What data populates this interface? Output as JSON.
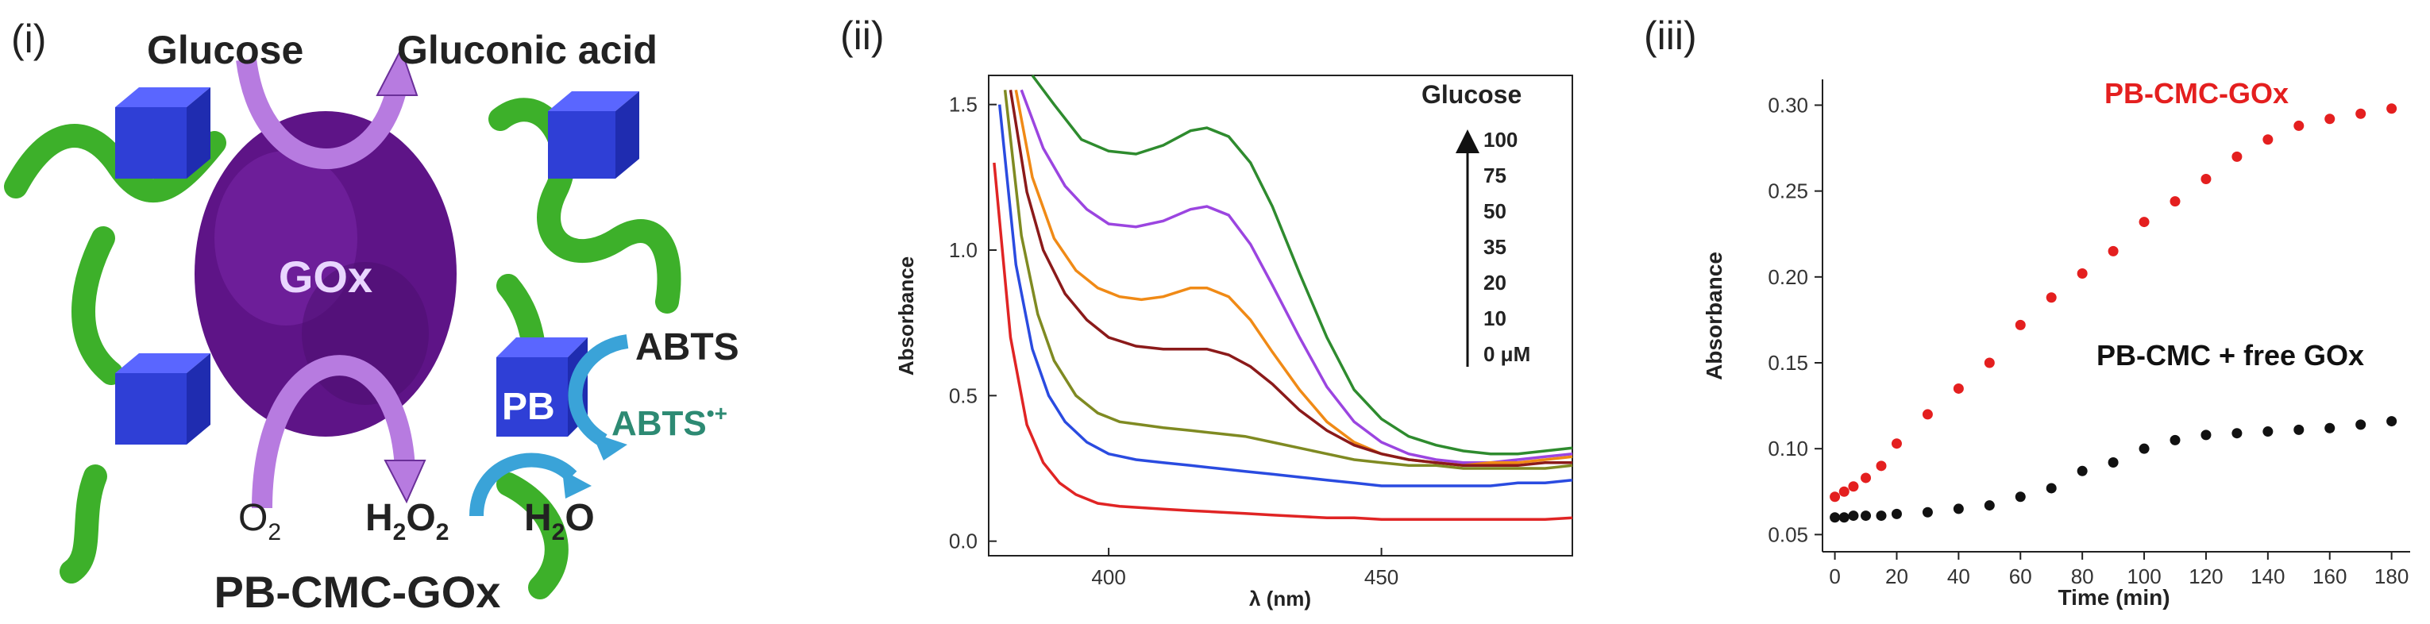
{
  "panel_i": {
    "label": "(i)",
    "glucose": "Glucose",
    "gluconic_acid": "Gluconic acid",
    "enzyme": "GOx",
    "o2": "O",
    "o2_sub": "2",
    "h2o2": "H",
    "h2o2_sub1": "2",
    "h2o2_mid": "O",
    "h2o2_sub2": "2",
    "pb": "PB",
    "abts": "ABTS",
    "abts_radical": "ABTS",
    "abts_radical_sup": "•+",
    "h2o": "H",
    "h2o_sub": "2",
    "h2o_end": "O",
    "complex_name": "PB-CMC-GOx",
    "colors": {
      "chain": "#3db02a",
      "cube": "#2f3fd6",
      "enzyme": "#6a1a93",
      "arrow_purple": "#b77be0",
      "arrow_blue": "#3aa3d8",
      "abts_radical": "#2d8a73"
    }
  },
  "chart_data": [
    {
      "type": "line",
      "panel_label": "(ii)",
      "xlabel": "λ (nm)",
      "ylabel": "Absorbance",
      "xlim": [
        378,
        485
      ],
      "ylim": [
        -0.05,
        1.6
      ],
      "xticks": [
        400,
        450
      ],
      "yticks": [
        "0.0",
        "0.5",
        "1.0",
        "1.5"
      ],
      "legend_title": "Glucose",
      "legend_labels": [
        "100",
        "75",
        "50",
        "35",
        "20",
        "10",
        "0 μM"
      ],
      "series": [
        {
          "name": "100",
          "color": "#2e8b2e",
          "x": [
            386,
            390,
            395,
            400,
            405,
            410,
            415,
            418,
            422,
            426,
            430,
            435,
            440,
            445,
            450,
            455,
            460,
            465,
            470,
            475,
            480,
            485
          ],
          "y": [
            1.6,
            1.5,
            1.38,
            1.34,
            1.33,
            1.36,
            1.41,
            1.42,
            1.39,
            1.3,
            1.15,
            0.92,
            0.7,
            0.52,
            0.42,
            0.36,
            0.33,
            0.31,
            0.3,
            0.3,
            0.31,
            0.32
          ]
        },
        {
          "name": "75",
          "color": "#9b45e0",
          "x": [
            384,
            388,
            392,
            396,
            400,
            405,
            410,
            415,
            418,
            422,
            426,
            430,
            435,
            440,
            445,
            450,
            455,
            460,
            465,
            470,
            475,
            480,
            485
          ],
          "y": [
            1.55,
            1.35,
            1.22,
            1.14,
            1.09,
            1.08,
            1.1,
            1.14,
            1.15,
            1.12,
            1.02,
            0.88,
            0.7,
            0.53,
            0.41,
            0.34,
            0.3,
            0.28,
            0.27,
            0.27,
            0.28,
            0.29,
            0.3
          ]
        },
        {
          "name": "50",
          "color": "#f08a16",
          "x": [
            383,
            386,
            390,
            394,
            398,
            402,
            406,
            410,
            415,
            418,
            422,
            426,
            430,
            435,
            440,
            445,
            450,
            455,
            460,
            465,
            470,
            475,
            480,
            485
          ],
          "y": [
            1.55,
            1.25,
            1.04,
            0.93,
            0.87,
            0.84,
            0.83,
            0.84,
            0.87,
            0.87,
            0.84,
            0.76,
            0.65,
            0.52,
            0.41,
            0.34,
            0.3,
            0.28,
            0.27,
            0.26,
            0.27,
            0.27,
            0.28,
            0.29
          ]
        },
        {
          "name": "35",
          "color": "#8b1a1a",
          "x": [
            382,
            385,
            388,
            392,
            396,
            400,
            405,
            410,
            415,
            418,
            422,
            426,
            430,
            435,
            440,
            445,
            450,
            455,
            460,
            465,
            470,
            475,
            480,
            485
          ],
          "y": [
            1.55,
            1.2,
            1.0,
            0.85,
            0.76,
            0.7,
            0.67,
            0.66,
            0.66,
            0.66,
            0.64,
            0.6,
            0.54,
            0.45,
            0.38,
            0.33,
            0.3,
            0.28,
            0.27,
            0.26,
            0.26,
            0.26,
            0.27,
            0.27
          ]
        },
        {
          "name": "20",
          "color": "#7f8a22",
          "x": [
            381,
            384,
            387,
            390,
            394,
            398,
            402,
            406,
            410,
            415,
            420,
            425,
            430,
            435,
            440,
            445,
            450,
            455,
            460,
            465,
            470,
            475,
            480,
            485
          ],
          "y": [
            1.55,
            1.05,
            0.78,
            0.62,
            0.5,
            0.44,
            0.41,
            0.4,
            0.39,
            0.38,
            0.37,
            0.36,
            0.34,
            0.32,
            0.3,
            0.28,
            0.27,
            0.26,
            0.26,
            0.25,
            0.25,
            0.25,
            0.25,
            0.26
          ]
        },
        {
          "name": "10",
          "color": "#2a4be0",
          "x": [
            380,
            383,
            386,
            389,
            392,
            396,
            400,
            405,
            410,
            415,
            420,
            425,
            430,
            435,
            440,
            445,
            450,
            455,
            460,
            465,
            470,
            475,
            480,
            485
          ],
          "y": [
            1.5,
            0.95,
            0.66,
            0.5,
            0.41,
            0.34,
            0.3,
            0.28,
            0.27,
            0.26,
            0.25,
            0.24,
            0.23,
            0.22,
            0.21,
            0.2,
            0.19,
            0.19,
            0.19,
            0.19,
            0.19,
            0.2,
            0.2,
            0.21
          ]
        },
        {
          "name": "0",
          "color": "#e02424",
          "x": [
            379,
            382,
            385,
            388,
            391,
            394,
            398,
            402,
            406,
            410,
            415,
            420,
            425,
            430,
            435,
            440,
            445,
            450,
            455,
            460,
            465,
            470,
            475,
            480,
            485
          ],
          "y": [
            1.3,
            0.7,
            0.4,
            0.27,
            0.2,
            0.16,
            0.13,
            0.12,
            0.115,
            0.11,
            0.105,
            0.1,
            0.095,
            0.09,
            0.085,
            0.08,
            0.08,
            0.075,
            0.075,
            0.075,
            0.075,
            0.075,
            0.075,
            0.075,
            0.08
          ]
        }
      ]
    },
    {
      "type": "scatter",
      "panel_label": "(iii)",
      "xlabel": "Time (min)",
      "ylabel": "Absorbance",
      "xlim": [
        -4,
        186
      ],
      "ylim": [
        0.04,
        0.315
      ],
      "xticks": [
        0,
        20,
        40,
        60,
        80,
        100,
        120,
        140,
        160,
        180
      ],
      "yticks": [
        "0.05",
        "0.10",
        "0.15",
        "0.20",
        "0.25",
        "0.30"
      ],
      "series": [
        {
          "name": "PB-CMC-GOx",
          "color": "#e41f1f",
          "x": [
            0,
            3,
            6,
            10,
            15,
            20,
            30,
            40,
            50,
            60,
            70,
            80,
            90,
            100,
            110,
            120,
            130,
            140,
            150,
            160,
            170,
            180
          ],
          "y": [
            0.072,
            0.075,
            0.078,
            0.083,
            0.09,
            0.103,
            0.12,
            0.135,
            0.15,
            0.172,
            0.188,
            0.202,
            0.215,
            0.232,
            0.244,
            0.257,
            0.27,
            0.28,
            0.288,
            0.292,
            0.295,
            0.298
          ]
        },
        {
          "name": "PB-CMC + free GOx",
          "color": "#111111",
          "x": [
            0,
            3,
            6,
            10,
            15,
            20,
            30,
            40,
            50,
            60,
            70,
            80,
            90,
            100,
            110,
            120,
            130,
            140,
            150,
            160,
            170,
            180
          ],
          "y": [
            0.06,
            0.06,
            0.061,
            0.061,
            0.061,
            0.062,
            0.063,
            0.065,
            0.067,
            0.072,
            0.077,
            0.087,
            0.092,
            0.1,
            0.105,
            0.108,
            0.109,
            0.11,
            0.111,
            0.112,
            0.114,
            0.116
          ]
        }
      ]
    }
  ]
}
